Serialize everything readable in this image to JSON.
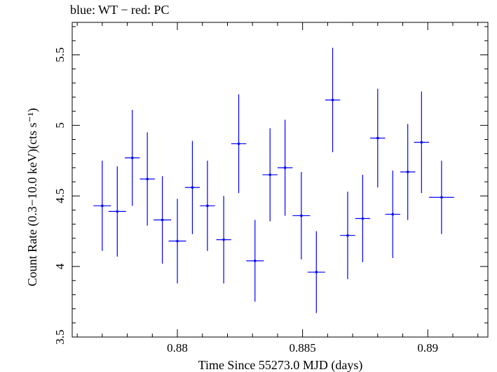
{
  "chart_data": {
    "type": "scatter",
    "title": "blue: WT − red: PC",
    "xlabel": "Time Since 55273.0 MJD (days)",
    "ylabel": "Count Rate (0.3−10.0 keV)(cts s⁻¹)",
    "xlim": [
      0.8758,
      0.8924
    ],
    "ylim": [
      3.5,
      5.73
    ],
    "xticks": [
      0.88,
      0.885,
      0.89
    ],
    "xtick_labels": [
      "0.88",
      "0.885",
      "0.89"
    ],
    "yticks": [
      3.5,
      4,
      4.5,
      5,
      5.5
    ],
    "ytick_labels": [
      "3.5",
      "4",
      "4.5",
      "5",
      "5.5"
    ],
    "grid": false,
    "series": [
      {
        "color": "#0000ff",
        "points": [
          {
            "x": 0.877,
            "xerr": 0.00035,
            "y": 4.43,
            "yerr": 0.32
          },
          {
            "x": 0.8776,
            "xerr": 0.00035,
            "y": 4.39,
            "yerr": 0.32
          },
          {
            "x": 0.8782,
            "xerr": 0.0003,
            "y": 4.77,
            "yerr": 0.34
          },
          {
            "x": 0.8788,
            "xerr": 0.0003,
            "y": 4.62,
            "yerr": 0.33
          },
          {
            "x": 0.8794,
            "xerr": 0.00035,
            "y": 4.33,
            "yerr": 0.31
          },
          {
            "x": 0.88,
            "xerr": 0.00035,
            "y": 4.18,
            "yerr": 0.3
          },
          {
            "x": 0.8806,
            "xerr": 0.0003,
            "y": 4.56,
            "yerr": 0.33
          },
          {
            "x": 0.8812,
            "xerr": 0.0003,
            "y": 4.43,
            "yerr": 0.32
          },
          {
            "x": 0.88185,
            "xerr": 0.0003,
            "y": 4.19,
            "yerr": 0.31
          },
          {
            "x": 0.88245,
            "xerr": 0.0003,
            "y": 4.87,
            "yerr": 0.35
          },
          {
            "x": 0.8831,
            "xerr": 0.00035,
            "y": 4.04,
            "yerr": 0.29
          },
          {
            "x": 0.8837,
            "xerr": 0.0003,
            "y": 4.65,
            "yerr": 0.33
          },
          {
            "x": 0.8843,
            "xerr": 0.0003,
            "y": 4.7,
            "yerr": 0.34
          },
          {
            "x": 0.88495,
            "xerr": 0.00035,
            "y": 4.36,
            "yerr": 0.31
          },
          {
            "x": 0.88555,
            "xerr": 0.00035,
            "y": 3.96,
            "yerr": 0.29
          },
          {
            "x": 0.8862,
            "xerr": 0.0003,
            "y": 5.18,
            "yerr": 0.37
          },
          {
            "x": 0.8868,
            "xerr": 0.0003,
            "y": 4.22,
            "yerr": 0.31
          },
          {
            "x": 0.8874,
            "xerr": 0.0003,
            "y": 4.34,
            "yerr": 0.31
          },
          {
            "x": 0.888,
            "xerr": 0.0003,
            "y": 4.91,
            "yerr": 0.35
          },
          {
            "x": 0.8886,
            "xerr": 0.0003,
            "y": 4.37,
            "yerr": 0.31
          },
          {
            "x": 0.8892,
            "xerr": 0.0003,
            "y": 4.67,
            "yerr": 0.34
          },
          {
            "x": 0.88975,
            "xerr": 0.0003,
            "y": 4.88,
            "yerr": 0.36
          },
          {
            "x": 0.89055,
            "xerr": 0.0005,
            "y": 4.49,
            "yerr": 0.26
          }
        ]
      }
    ]
  }
}
